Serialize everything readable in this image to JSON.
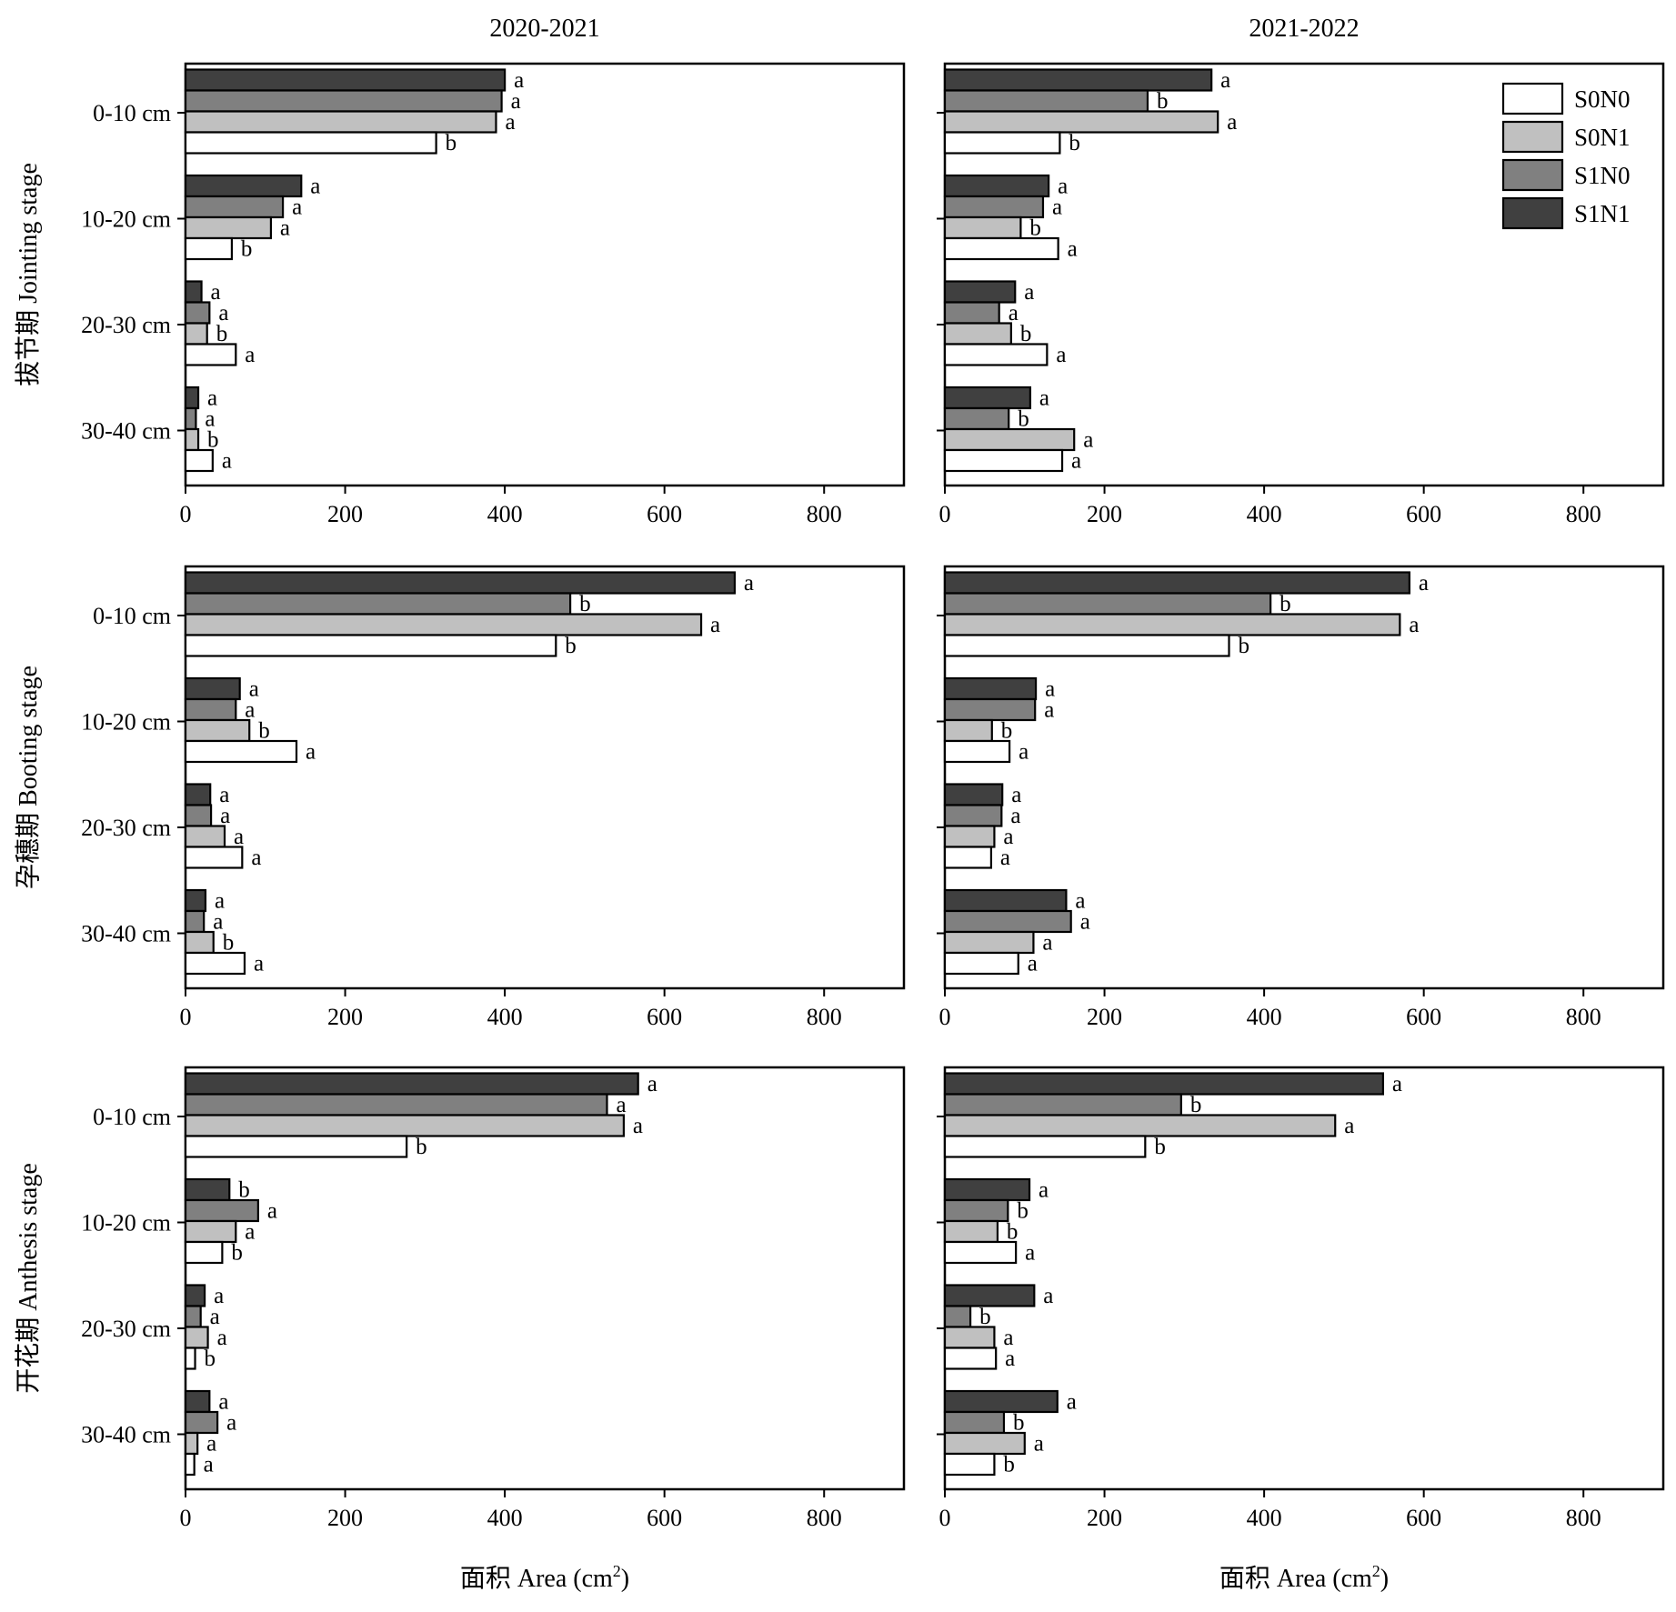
{
  "figure": {
    "columns": [
      "2020-2021",
      "2021-2022"
    ],
    "rows": [
      "拔节期 Jointing stage",
      "孕穗期 Booting stage",
      "开花期 Anthesis stage"
    ],
    "xlabel_main": "面积 Area (cm",
    "xlabel_sup": "2",
    "xlabel_end": ")",
    "depths": [
      "0-10 cm",
      "10-20 cm",
      "20-30 cm",
      "30-40 cm"
    ],
    "xticks": [
      "0",
      "200",
      "400",
      "600",
      "800"
    ]
  },
  "legend": {
    "placement": "top-right of upper-right panel",
    "items": [
      {
        "name": "S0N0",
        "color": "#ffffff"
      },
      {
        "name": "S0N1",
        "color": "#c0c0c0"
      },
      {
        "name": "S1N0",
        "color": "#808080"
      },
      {
        "name": "S1N1",
        "color": "#404040"
      }
    ]
  },
  "chart_data": [
    {
      "type": "bar",
      "orientation": "horizontal",
      "row": "拔节期 Jointing stage",
      "column": "2020-2021",
      "categories": [
        "0-10 cm",
        "10-20 cm",
        "20-30 cm",
        "30-40 cm"
      ],
      "xlim": [
        0,
        900
      ],
      "series": [
        {
          "name": "S1N1",
          "values": [
            400,
            145,
            20,
            16
          ],
          "labels": [
            "a",
            "a",
            "a",
            "a"
          ]
        },
        {
          "name": "S1N0",
          "values": [
            396,
            122,
            30,
            13
          ],
          "labels": [
            "a",
            "a",
            "a",
            "a"
          ]
        },
        {
          "name": "S0N1",
          "values": [
            389,
            107,
            27,
            16
          ],
          "labels": [
            "a",
            "a",
            "b",
            "b"
          ]
        },
        {
          "name": "S0N0",
          "values": [
            314,
            58,
            63,
            34
          ],
          "labels": [
            "b",
            "b",
            "a",
            "a"
          ]
        }
      ]
    },
    {
      "type": "bar",
      "orientation": "horizontal",
      "row": "拔节期 Jointing stage",
      "column": "2021-2022",
      "categories": [
        "0-10 cm",
        "10-20 cm",
        "20-30 cm",
        "30-40 cm"
      ],
      "xlim": [
        0,
        900
      ],
      "series": [
        {
          "name": "S1N1",
          "values": [
            334,
            130,
            88,
            107
          ],
          "labels": [
            "a",
            "a",
            "a",
            "a"
          ]
        },
        {
          "name": "S1N0",
          "values": [
            254,
            123,
            68,
            80
          ],
          "labels": [
            "b",
            "a",
            "a",
            "b"
          ]
        },
        {
          "name": "S0N1",
          "values": [
            342,
            95,
            83,
            162
          ],
          "labels": [
            "a",
            "b",
            "b",
            "a"
          ]
        },
        {
          "name": "S0N0",
          "values": [
            144,
            142,
            128,
            147
          ],
          "labels": [
            "b",
            "a",
            "a",
            "a"
          ]
        }
      ]
    },
    {
      "type": "bar",
      "orientation": "horizontal",
      "row": "孕穗期 Booting stage",
      "column": "2020-2021",
      "categories": [
        "0-10 cm",
        "10-20 cm",
        "20-30 cm",
        "30-40 cm"
      ],
      "xlim": [
        0,
        900
      ],
      "series": [
        {
          "name": "S1N1",
          "values": [
            688,
            68,
            31,
            25
          ],
          "labels": [
            "a",
            "a",
            "a",
            "a"
          ]
        },
        {
          "name": "S1N0",
          "values": [
            482,
            63,
            32,
            23
          ],
          "labels": [
            "b",
            "a",
            "a",
            "a"
          ]
        },
        {
          "name": "S0N1",
          "values": [
            646,
            80,
            49,
            35
          ],
          "labels": [
            "a",
            "b",
            "a",
            "b"
          ]
        },
        {
          "name": "S0N0",
          "values": [
            464,
            139,
            71,
            74
          ],
          "labels": [
            "b",
            "a",
            "a",
            "a"
          ]
        }
      ]
    },
    {
      "type": "bar",
      "orientation": "horizontal",
      "row": "孕穗期 Booting stage",
      "column": "2021-2022",
      "categories": [
        "0-10 cm",
        "10-20 cm",
        "20-30 cm",
        "30-40 cm"
      ],
      "xlim": [
        0,
        900
      ],
      "series": [
        {
          "name": "S1N1",
          "values": [
            582,
            114,
            72,
            152
          ],
          "labels": [
            "a",
            "a",
            "a",
            "a"
          ]
        },
        {
          "name": "S1N0",
          "values": [
            408,
            113,
            71,
            158
          ],
          "labels": [
            "b",
            "a",
            "a",
            "a"
          ]
        },
        {
          "name": "S0N1",
          "values": [
            570,
            59,
            62,
            111
          ],
          "labels": [
            "a",
            "b",
            "a",
            "a"
          ]
        },
        {
          "name": "S0N0",
          "values": [
            356,
            81,
            58,
            92
          ],
          "labels": [
            "b",
            "a",
            "a",
            "a"
          ]
        }
      ]
    },
    {
      "type": "bar",
      "orientation": "horizontal",
      "row": "开花期 Anthesis stage",
      "column": "2020-2021",
      "categories": [
        "0-10 cm",
        "10-20 cm",
        "20-30 cm",
        "30-40 cm"
      ],
      "xlim": [
        0,
        900
      ],
      "series": [
        {
          "name": "S1N1",
          "values": [
            567,
            55,
            24,
            30
          ],
          "labels": [
            "a",
            "b",
            "a",
            "a"
          ]
        },
        {
          "name": "S1N0",
          "values": [
            528,
            91,
            19,
            40
          ],
          "labels": [
            "a",
            "a",
            "a",
            "a"
          ]
        },
        {
          "name": "S0N1",
          "values": [
            549,
            63,
            28,
            15
          ],
          "labels": [
            "a",
            "a",
            "a",
            "a"
          ]
        },
        {
          "name": "S0N0",
          "values": [
            277,
            46,
            12,
            11
          ],
          "labels": [
            "b",
            "b",
            "b",
            "a"
          ]
        }
      ]
    },
    {
      "type": "bar",
      "orientation": "horizontal",
      "row": "开花期 Anthesis stage",
      "column": "2021-2022",
      "categories": [
        "0-10 cm",
        "10-20 cm",
        "20-30 cm",
        "30-40 cm"
      ],
      "xlim": [
        0,
        900
      ],
      "series": [
        {
          "name": "S1N1",
          "values": [
            549,
            106,
            112,
            141
          ],
          "labels": [
            "a",
            "a",
            "a",
            "a"
          ]
        },
        {
          "name": "S1N0",
          "values": [
            296,
            79,
            32,
            74
          ],
          "labels": [
            "b",
            "b",
            "b",
            "b"
          ]
        },
        {
          "name": "S0N1",
          "values": [
            489,
            66,
            62,
            100
          ],
          "labels": [
            "a",
            "b",
            "a",
            "a"
          ]
        },
        {
          "name": "S0N0",
          "values": [
            251,
            89,
            64,
            62
          ],
          "labels": [
            "b",
            "a",
            "a",
            "b"
          ]
        }
      ]
    }
  ]
}
